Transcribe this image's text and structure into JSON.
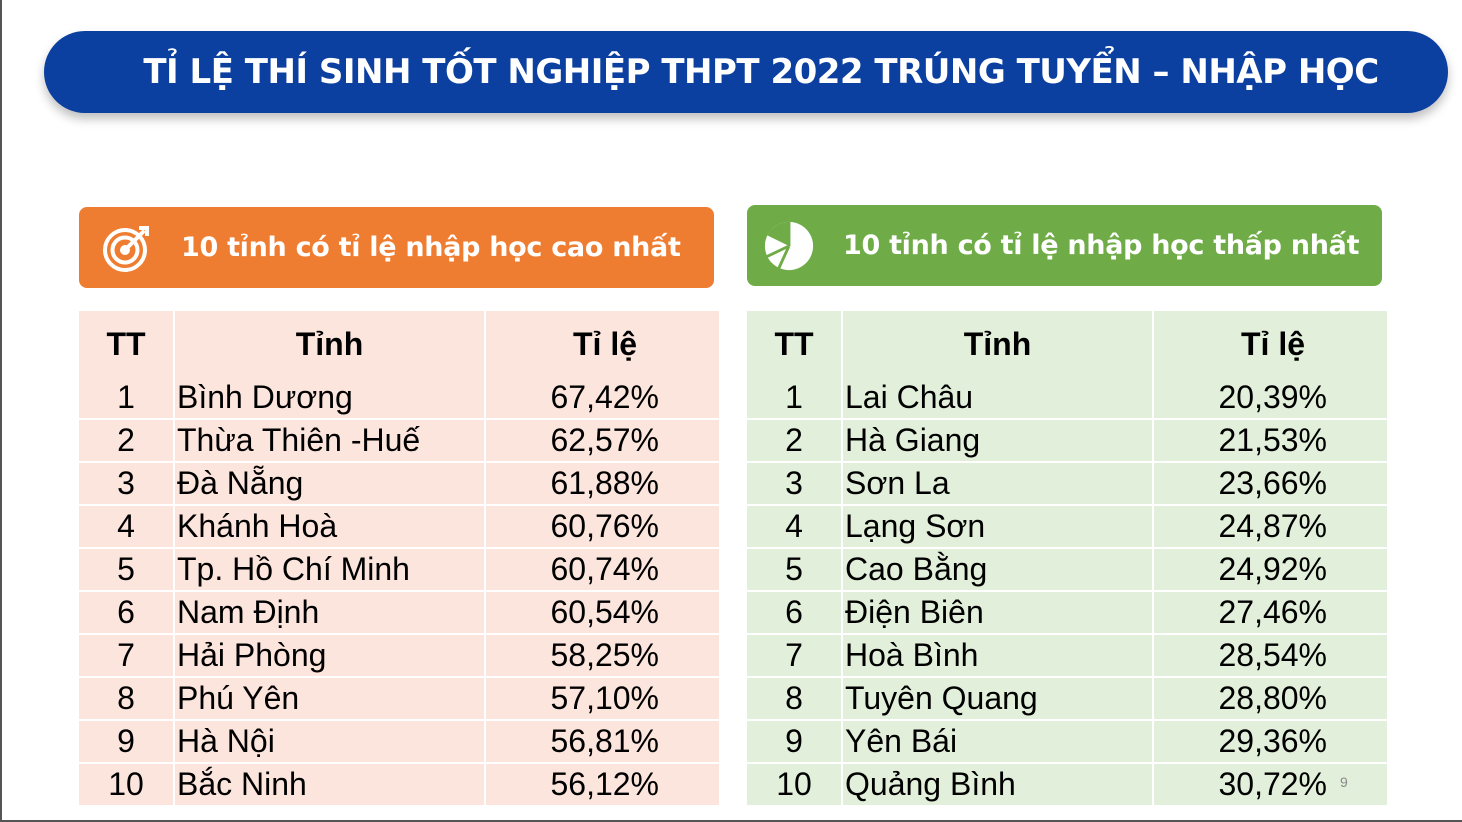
{
  "title": "TỈ LỆ THÍ SINH TỐT NGHIỆP THPT 2022 TRÚNG TUYỂN – NHẬP HỌC",
  "colors": {
    "title_bg": "#0b3fa0",
    "left_header_bg": "#ef7d31",
    "right_header_bg": "#6fac47",
    "left_table_bg": "#fbe5dd",
    "right_table_bg": "#e2efda"
  },
  "left_panel": {
    "icon": "target-icon",
    "heading": "10 tỉnh có tỉ lệ nhập học cao nhất",
    "columns": [
      "TT",
      "Tỉnh",
      "Tỉ lệ"
    ],
    "rows": [
      {
        "tt": "1",
        "province": "Bình Dương",
        "rate": "67,42%"
      },
      {
        "tt": "2",
        "province": "Thừa Thiên -Huế",
        "rate": "62,57%"
      },
      {
        "tt": "3",
        "province": "Đà Nẵng",
        "rate": "61,88%"
      },
      {
        "tt": "4",
        "province": "Khánh Hoà",
        "rate": "60,76%"
      },
      {
        "tt": "5",
        "province": "Tp. Hồ Chí Minh",
        "rate": "60,74%"
      },
      {
        "tt": "6",
        "province": "Nam Định",
        "rate": "60,54%"
      },
      {
        "tt": "7",
        "province": "Hải Phòng",
        "rate": "58,25%"
      },
      {
        "tt": "8",
        "province": "Phú Yên",
        "rate": "57,10%"
      },
      {
        "tt": "9",
        "province": "Hà Nội",
        "rate": "56,81%"
      },
      {
        "tt": "10",
        "province": "Bắc Ninh",
        "rate": "56,12%"
      }
    ]
  },
  "right_panel": {
    "icon": "pie-chart-icon",
    "heading": "10 tỉnh có tỉ lệ nhập học thấp nhất",
    "columns": [
      "TT",
      "Tỉnh",
      "Tỉ lệ"
    ],
    "rows": [
      {
        "tt": "1",
        "province": "Lai Châu",
        "rate": "20,39%"
      },
      {
        "tt": "2",
        "province": "Hà Giang",
        "rate": "21,53%"
      },
      {
        "tt": "3",
        "province": "Sơn La",
        "rate": "23,66%"
      },
      {
        "tt": "4",
        "province": "Lạng Sơn",
        "rate": "24,87%"
      },
      {
        "tt": "5",
        "province": "Cao Bằng",
        "rate": "24,92%"
      },
      {
        "tt": "6",
        "province": "Điện Biên",
        "rate": "27,46%"
      },
      {
        "tt": "7",
        "province": "Hoà Bình",
        "rate": "28,54%"
      },
      {
        "tt": "8",
        "province": "Tuyên Quang",
        "rate": "28,80%"
      },
      {
        "tt": "9",
        "province": "Yên Bái",
        "rate": "29,36%"
      },
      {
        "tt": "10",
        "province": "Quảng Bình",
        "rate": "30,72%"
      }
    ]
  },
  "page_number": "9"
}
